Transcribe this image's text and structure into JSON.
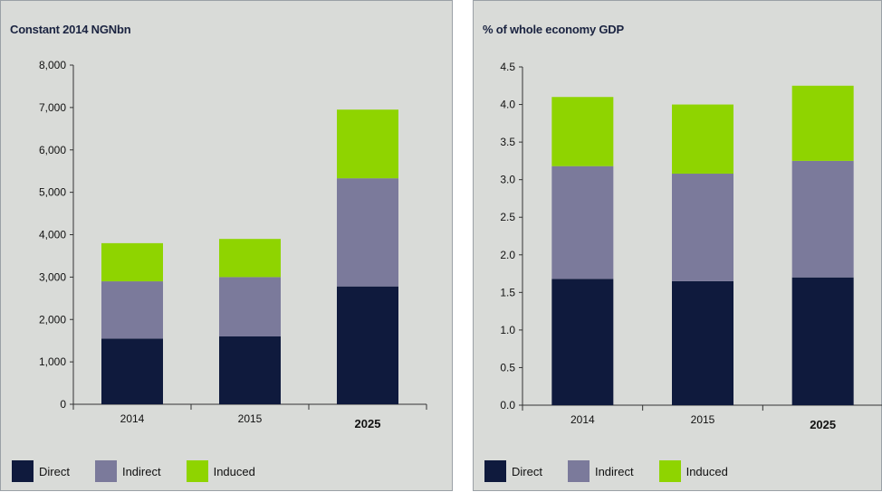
{
  "colors": {
    "direct": "#0f1a3d",
    "indirect": "#7b7a9b",
    "induced": "#8fd400",
    "axis": "#333333"
  },
  "chart_data": [
    {
      "type": "bar",
      "stacked": true,
      "title": "Constant 2014 NGNbn",
      "categories": [
        "2014",
        "2015",
        "2025"
      ],
      "bold_categories": [
        "2025"
      ],
      "series": [
        {
          "name": "Direct",
          "values": [
            1550,
            1600,
            2780
          ]
        },
        {
          "name": "Indirect",
          "values": [
            1350,
            1400,
            2550
          ]
        },
        {
          "name": "Induced",
          "values": [
            900,
            900,
            1620
          ]
        }
      ],
      "ylim": [
        0,
        8000
      ],
      "yticks": [
        "0",
        "1,000",
        "2,000",
        "3,000",
        "4,000",
        "5,000",
        "6,000",
        "7,000",
        "8,000"
      ],
      "legend": [
        "Direct",
        "Indirect",
        "Induced"
      ],
      "legend_position": "bottom"
    },
    {
      "type": "bar",
      "stacked": true,
      "title": "% of whole economy GDP",
      "categories": [
        "2014",
        "2015",
        "2025"
      ],
      "bold_categories": [
        "2025"
      ],
      "series": [
        {
          "name": "Direct",
          "values": [
            1.68,
            1.65,
            1.7
          ]
        },
        {
          "name": "Indirect",
          "values": [
            1.5,
            1.43,
            1.55
          ]
        },
        {
          "name": "Induced",
          "values": [
            0.92,
            0.92,
            1.0
          ]
        }
      ],
      "ylim": [
        0,
        4.5
      ],
      "yticks": [
        "0.0",
        "0.5",
        "1.0",
        "1.5",
        "2.0",
        "2.5",
        "3.0",
        "3.5",
        "4.0",
        "4.5"
      ],
      "legend": [
        "Direct",
        "Indirect",
        "Induced"
      ],
      "legend_position": "bottom"
    }
  ]
}
